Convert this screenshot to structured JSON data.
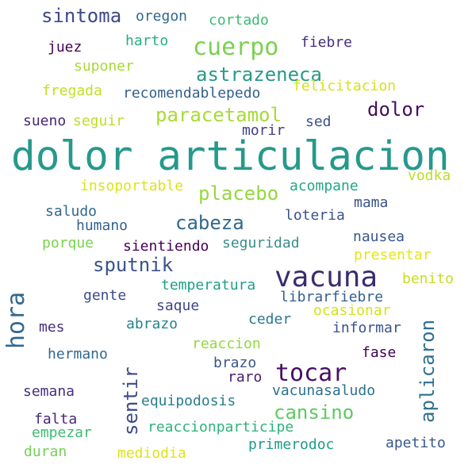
{
  "words": {
    "dolor_articulacion": "dolor articulacion",
    "vacuna": "vacuna",
    "tocar": "tocar",
    "cuerpo": "cuerpo",
    "astrazeneca": "astrazeneca",
    "placebo": "placebo",
    "paracetamol": "paracetamol",
    "dolor": "dolor",
    "sintoma": "sintoma",
    "cabeza": "cabeza",
    "sputnik": "sputnik",
    "cansino": "cansino",
    "hora": "hora",
    "sentir": "sentir",
    "aplicaron": "aplicaron",
    "oregon": "oregon",
    "cortado": "cortado",
    "juez": "juez",
    "harto": "harto",
    "fiebre": "fiebre",
    "suponer": "suponer",
    "fregada": "fregada",
    "recomendablepedo": "recomendablepedo",
    "felicitacion": "felicitacion",
    "sueno": "sueno",
    "seguir": "seguir",
    "morir": "morir",
    "sed": "sed",
    "insoportable": "insoportable",
    "acompane": "acompane",
    "vodka": "vodka",
    "mama": "mama",
    "saludo": "saludo",
    "humano": "humano",
    "loteria": "loteria",
    "porque": "porque",
    "sientiendo": "sientiendo",
    "seguridad": "seguridad",
    "nausea": "nausea",
    "presentar": "presentar",
    "temperatura": "temperatura",
    "benito": "benito",
    "gente": "gente",
    "saque": "saque",
    "librarfiebre": "librarfiebre",
    "ocasionar": "ocasionar",
    "mes": "mes",
    "abrazo": "abrazo",
    "ceder": "ceder",
    "informar": "informar",
    "reaccion": "reaccion",
    "hermano": "hermano",
    "fase": "fase",
    "brazo": "brazo",
    "raro": "raro",
    "semana": "semana",
    "vacunasaludo": "vacunasaludo",
    "equipodosis": "equipodosis",
    "falta": "falta",
    "reaccionparticipe": "reaccionparticipe",
    "empezar": "empezar",
    "primerodoc": "primerodoc",
    "apetito": "apetito",
    "duran": "duran",
    "mediodia": "mediodia"
  },
  "colors": {
    "background": "#ffffff",
    "palette": [
      "#440154",
      "#46327e",
      "#365c8d",
      "#277f8e",
      "#1fa187",
      "#4ac16d",
      "#a0da39",
      "#fde725"
    ]
  }
}
